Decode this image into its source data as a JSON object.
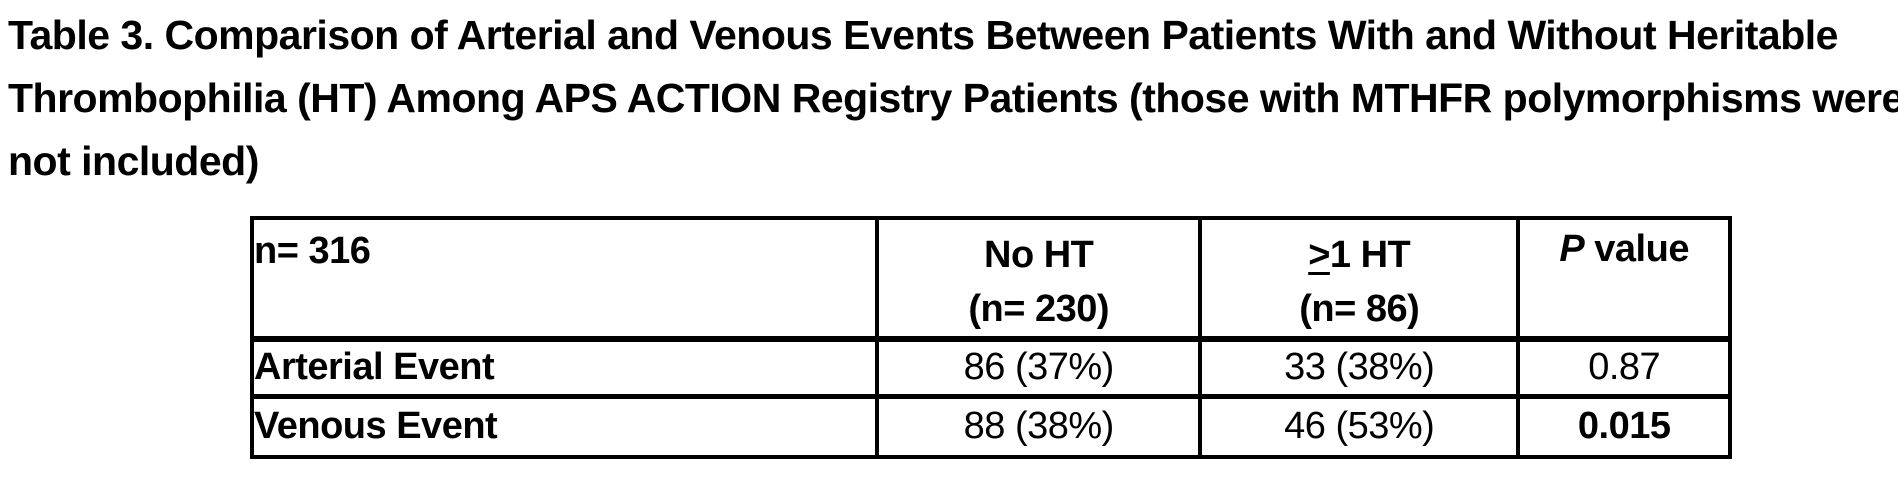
{
  "caption": {
    "lines": [
      "Table 3. Comparison of Arterial and Venous Events Between Patients With and Without Heritable",
      "Thrombophilia (HT) Among APS ACTION Registry Patients (those with MTHFR polymorphisms were",
      "not included)"
    ]
  },
  "table": {
    "header": {
      "n_total": "n= 316",
      "no_ht_line1": "No HT",
      "no_ht_line2": "(n= 230)",
      "geq_symbol": ">",
      "ht_line1_rest": "1 HT",
      "ht_line2": "(n= 86)",
      "p_italic": "P",
      "p_rest": "value"
    },
    "rows": [
      {
        "label": "Arterial Event",
        "no_ht": "86 (37%)",
        "ge1_ht": "33 (38%)",
        "p_value": "0.87",
        "p_bold": false
      },
      {
        "label": "Venous Event",
        "no_ht": "88 (38%)",
        "ge1_ht": "46 (53%)",
        "p_value": "0.015",
        "p_bold": true
      }
    ]
  },
  "colors": {
    "background": "#ffffff",
    "text": "#000000",
    "border": "#000000"
  }
}
